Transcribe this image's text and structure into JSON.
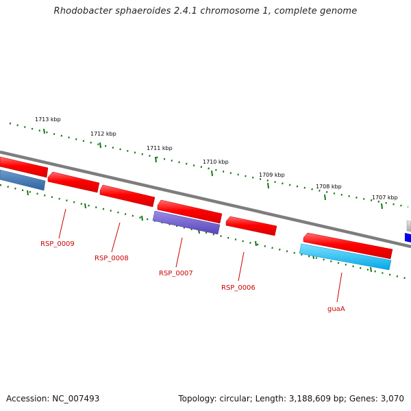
{
  "title": "Rhodobacter sphaeroides 2.4.1 chromosome 1, complete genome",
  "footer": {
    "accession": "Accession: NC_007493",
    "summary": "Topology: circular; Length: 3,188,609 bp; Genes: 3,070"
  },
  "colors": {
    "backbone": "#7d7d7d",
    "forward_gene": "#ff0000",
    "tick": "#117711",
    "label": "#cc0000",
    "steelblue": "#3f77ad",
    "slateblue": "#6a5acd",
    "deepskyblue": "#00b8ee",
    "blue": "#0000ee",
    "grey": "#c8c8c8"
  },
  "scale_labels": [
    "1713 kbp",
    "1712 kbp",
    "1711 kbp",
    "1710 kbp",
    "1709 kbp",
    "1708 kbp",
    "1707 kbp"
  ],
  "gene_labels": [
    "RSP_0009",
    "RSP_0008",
    "RSP_0007",
    "RSP_0006",
    "guaA"
  ]
}
